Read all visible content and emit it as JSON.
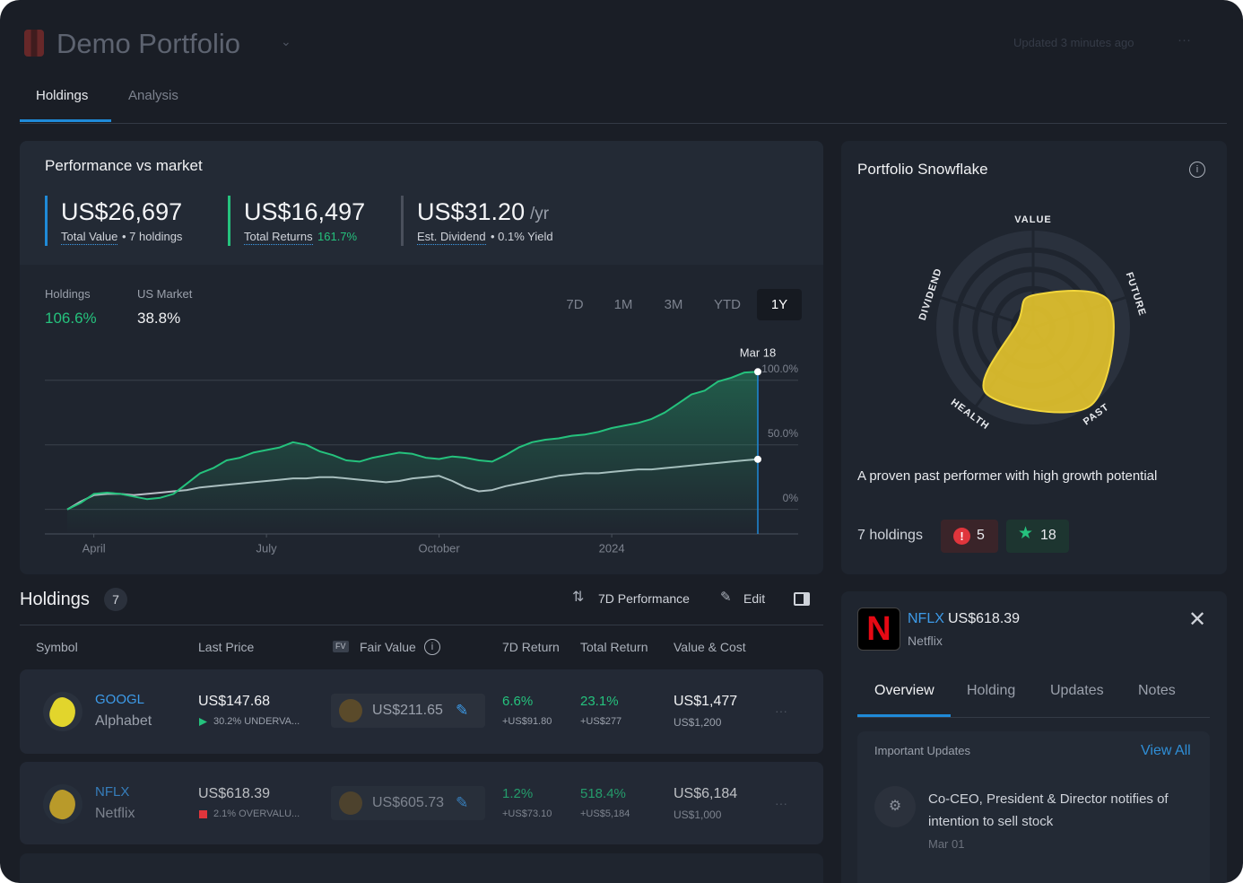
{
  "header": {
    "title": "Demo Portfolio",
    "updated": "Updated 3 minutes ago"
  },
  "tabs": [
    "Holdings",
    "Analysis"
  ],
  "performance": {
    "title": "Performance vs market",
    "stats": [
      {
        "value": "US$26,697",
        "label": "Total Value",
        "note": "• 7 holdings"
      },
      {
        "value": "US$16,497",
        "label": "Total Returns",
        "note": "161.7%"
      },
      {
        "value": "US$31.20",
        "unit": "/yr",
        "label": "Est. Dividend",
        "note": "• 0.1% Yield"
      }
    ],
    "periods": [
      "7D",
      "1M",
      "3M",
      "YTD",
      "1Y"
    ]
  },
  "chart_data": [
    {
      "type": "line",
      "annotation": "Mar 18",
      "series": [
        {
          "name": "Holdings",
          "summary": "106.6%",
          "color": "#25c27d",
          "values": [
            0,
            5,
            12,
            13,
            12,
            10,
            8,
            9,
            12,
            20,
            28,
            32,
            38,
            40,
            44,
            46,
            48,
            52,
            50,
            45,
            42,
            38,
            37,
            40,
            42,
            44,
            43,
            40,
            39,
            41,
            40,
            38,
            37,
            42,
            48,
            52,
            54,
            55,
            57,
            58,
            60,
            63,
            65,
            67,
            70,
            75,
            82,
            89,
            92,
            99,
            102,
            106,
            106.6
          ]
        },
        {
          "name": "US Market",
          "summary": "38.8%",
          "color": "#b9bec7",
          "values": [
            0,
            6,
            11,
            12,
            12,
            11,
            12,
            13,
            14,
            15,
            17,
            18,
            19,
            20,
            21,
            22,
            23,
            24,
            24,
            25,
            25,
            24,
            23,
            22,
            21,
            22,
            24,
            25,
            26,
            22,
            17,
            14,
            15,
            18,
            20,
            22,
            24,
            26,
            27,
            28,
            28,
            29,
            30,
            31,
            31,
            32,
            33,
            34,
            35,
            36,
            37,
            38,
            38.8
          ]
        }
      ],
      "xlim": [
        0,
        52
      ],
      "xticks": [
        {
          "value": 2,
          "label": "April"
        },
        {
          "value": 15,
          "label": "July"
        },
        {
          "value": 28,
          "label": "October"
        },
        {
          "value": 41,
          "label": "2024"
        }
      ],
      "ylim": [
        -19,
        120
      ],
      "yticks": [
        {
          "value": 0,
          "label": "0%"
        },
        {
          "value": 50,
          "label": "50.0%"
        },
        {
          "value": 100,
          "label": "100.0%"
        }
      ],
      "grid": true
    },
    {
      "type": "radar",
      "title": "Portfolio Snowflake",
      "categories": [
        "VALUE",
        "FUTURE",
        "PAST",
        "HEALTH",
        "DIVIDEND"
      ],
      "values": [
        2,
        5,
        6,
        5,
        1
      ],
      "rlim": [
        0,
        6
      ],
      "color": "#e2c12c",
      "caption": "A proven past performer with high growth potential"
    }
  ],
  "snowflake_footer": {
    "holdings": "7 holdings",
    "warnings": "5",
    "rewards": "18"
  },
  "holdings": {
    "title": "Holdings",
    "count": "7",
    "actions": [
      "7D Performance",
      "Edit"
    ],
    "fv_badge": "FV",
    "columns": [
      "Symbol",
      "Last Price",
      "Fair Value",
      "7D Return",
      "Total Return",
      "Value & Cost"
    ],
    "rows": [
      {
        "ticker": "GOOGL",
        "name": "Alphabet",
        "price": "US$147.68",
        "valuation": "30.2% UNDERVA...",
        "valuation_color": "#25c27d",
        "fair_value": "US$211.65",
        "return_7d": "6.6%",
        "return_7d_amount": "+US$91.80",
        "total_return": "23.1%",
        "total_return_amount": "+US$277",
        "value": "US$1,477",
        "cost": "US$1,200"
      },
      {
        "ticker": "NFLX",
        "name": "Netflix",
        "price": "US$618.39",
        "valuation": "2.1% OVERVALU...",
        "valuation_color": "#e0353c",
        "fair_value": "US$605.73",
        "return_7d": "1.2%",
        "return_7d_amount": "+US$73.10",
        "total_return": "518.4%",
        "total_return_amount": "+US$5,184",
        "value": "US$6,184",
        "cost": "US$1,000"
      }
    ]
  },
  "detail": {
    "ticker": "NFLX",
    "price": "US$618.39",
    "name": "Netflix",
    "tabs": [
      "Overview",
      "Holding",
      "Updates",
      "Notes"
    ],
    "updates_title": "Important Updates",
    "view_all": "View All",
    "update": "Co-CEO, President & Director notifies of intention to sell stock",
    "update_date": "Mar 01"
  }
}
